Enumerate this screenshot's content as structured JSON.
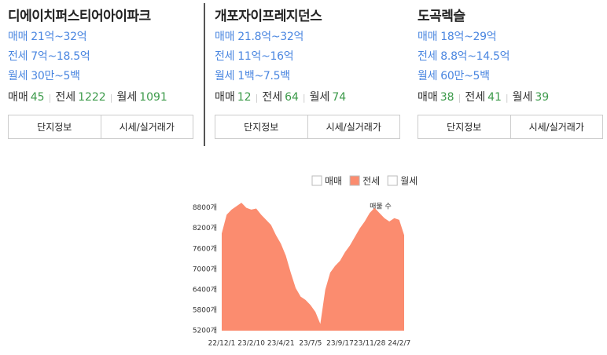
{
  "cards": [
    {
      "name": "디에이치퍼스티어아이파크",
      "prices": [
        "매매 21억~32억",
        "전세 7억~18.5억",
        "월세 30만~5백"
      ],
      "counts": [
        {
          "label": "매매",
          "count": 45
        },
        {
          "label": "전세",
          "count": 1222
        },
        {
          "label": "월세",
          "count": 1091
        }
      ],
      "buttons": [
        "단지정보",
        "시세/실거래가"
      ]
    },
    {
      "name": "개포자이프레지던스",
      "prices": [
        "매매 21.8억~32억",
        "전세 11억~16억",
        "월세 1백~7.5백"
      ],
      "counts": [
        {
          "label": "매매",
          "count": 12
        },
        {
          "label": "전세",
          "count": 64
        },
        {
          "label": "월세",
          "count": 74
        }
      ],
      "buttons": [
        "단지정보",
        "시세/실거래가"
      ]
    },
    {
      "name": "도곡렉슬",
      "prices": [
        "매매 18억~29억",
        "전세 8.8억~14.5억",
        "월세 60만~5백"
      ],
      "counts": [
        {
          "label": "매매",
          "count": 38
        },
        {
          "label": "전세",
          "count": 41
        },
        {
          "label": "월세",
          "count": 39
        }
      ],
      "buttons": [
        "단지정보",
        "시세/실거래가"
      ]
    }
  ],
  "chart_data": {
    "type": "area",
    "annotation": "매물 수",
    "categories": [
      "22/12/1",
      null,
      null,
      null,
      null,
      null,
      "23/2/10",
      null,
      null,
      null,
      null,
      null,
      "23/4/21",
      null,
      null,
      null,
      null,
      null,
      "23/7/5",
      null,
      null,
      null,
      null,
      null,
      "23/9/17",
      null,
      null,
      null,
      null,
      null,
      "23/11/28",
      null,
      null,
      null,
      null,
      null,
      "24/2/7",
      null
    ],
    "series": [
      {
        "name": "전세",
        "color": "#fb8c6f",
        "values": [
          8050,
          8600,
          8750,
          8850,
          8950,
          8800,
          8750,
          8780,
          8600,
          8450,
          8300,
          8000,
          7750,
          7400,
          6900,
          6450,
          6200,
          6100,
          5950,
          5750,
          5400,
          6400,
          6900,
          7100,
          7250,
          7500,
          7700,
          7950,
          8200,
          8400,
          8650,
          8800,
          8650,
          8500,
          8400,
          8500,
          8450,
          8000
        ]
      }
    ],
    "inactive_series": [
      "매매",
      "월세"
    ],
    "ylim": [
      5200,
      9000
    ],
    "yticks": [
      {
        "value": 5200,
        "label": "5200개"
      },
      {
        "value": 5800,
        "label": "5800개"
      },
      {
        "value": 6400,
        "label": "6400개"
      },
      {
        "value": 7000,
        "label": "7000개"
      },
      {
        "value": 7600,
        "label": "7600개"
      },
      {
        "value": 8200,
        "label": "8200개"
      },
      {
        "value": 8800,
        "label": "8800개"
      }
    ]
  }
}
